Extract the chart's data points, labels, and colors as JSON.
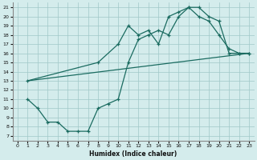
{
  "xlabel": "Humidex (Indice chaleur)",
  "bg_color": "#d4ecec",
  "grid_color": "#a0c8c8",
  "line_color": "#1a6b60",
  "xlim": [
    -0.5,
    23.5
  ],
  "ylim": [
    6.5,
    21.5
  ],
  "xticks": [
    0,
    1,
    2,
    3,
    4,
    5,
    6,
    7,
    8,
    9,
    10,
    11,
    12,
    13,
    14,
    15,
    16,
    17,
    18,
    19,
    20,
    21,
    22,
    23
  ],
  "yticks": [
    7,
    8,
    9,
    10,
    11,
    12,
    13,
    14,
    15,
    16,
    17,
    18,
    19,
    20,
    21
  ],
  "curve1_x": [
    1,
    2,
    3,
    4,
    5,
    6,
    7,
    8,
    9,
    10,
    11,
    12,
    13,
    14,
    15,
    16,
    17,
    18,
    19,
    20,
    21,
    22,
    23
  ],
  "curve1_y": [
    11,
    10,
    8.5,
    8.5,
    7.5,
    7.5,
    7.5,
    10,
    10.5,
    11,
    15,
    17.5,
    18,
    18.5,
    18,
    20,
    21,
    21,
    20,
    19.5,
    16,
    16,
    16
  ],
  "curve2_x": [
    1,
    8,
    10,
    11,
    12,
    13,
    14,
    15,
    16,
    17,
    18,
    19,
    20,
    21,
    22,
    23
  ],
  "curve2_y": [
    13,
    15,
    17,
    19,
    18,
    18.5,
    17,
    20,
    20.5,
    21,
    20,
    19.5,
    18,
    16.5,
    16,
    16
  ],
  "curve3_x": [
    1,
    23
  ],
  "curve3_y": [
    13,
    16
  ]
}
